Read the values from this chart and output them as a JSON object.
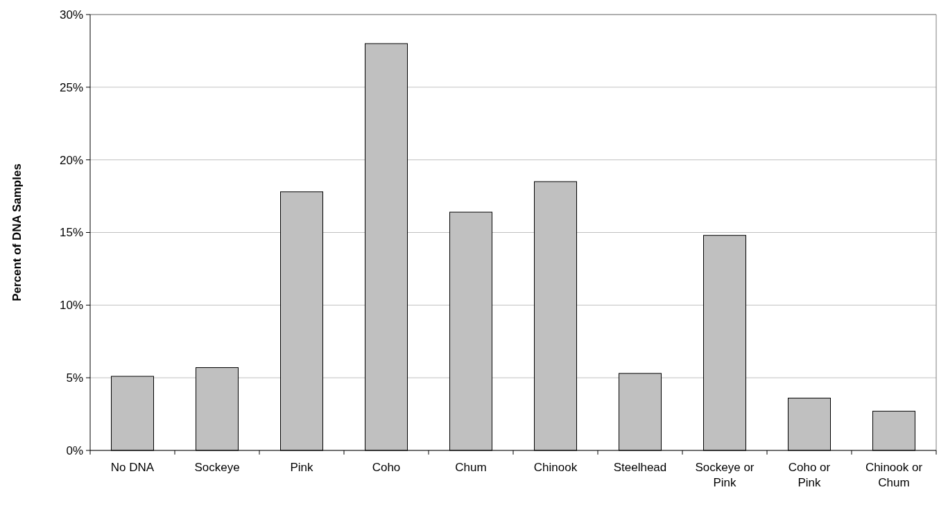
{
  "chart_data": {
    "type": "bar",
    "ylabel": "Percent of DNA Samples",
    "categories": [
      "No DNA",
      "Sockeye",
      "Pink",
      "Coho",
      "Chum",
      "Chinook",
      "Steelhead",
      "Sockeye or Pink",
      "Coho or Pink",
      "Chinook or Chum"
    ],
    "values": [
      5.1,
      5.7,
      17.8,
      28.0,
      16.4,
      18.5,
      5.3,
      14.8,
      3.6,
      2.7
    ],
    "color": "#c0c0c0",
    "ylim": [
      0,
      30
    ],
    "yticks": [
      {
        "value": 0,
        "label": "0%"
      },
      {
        "value": 5,
        "label": "5%"
      },
      {
        "value": 10,
        "label": "10%"
      },
      {
        "value": 15,
        "label": "15%"
      },
      {
        "value": 20,
        "label": "20%"
      },
      {
        "value": 25,
        "label": "25%"
      },
      {
        "value": 30,
        "label": "30%"
      }
    ],
    "grid": "y"
  }
}
